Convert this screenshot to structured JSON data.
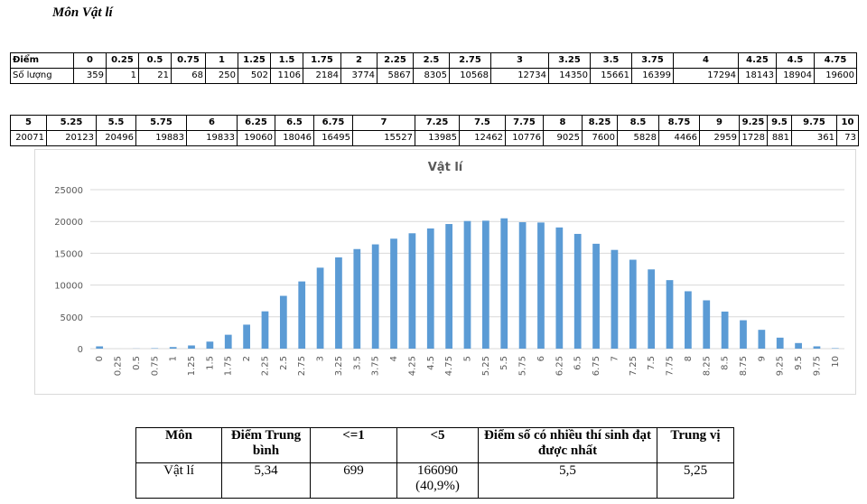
{
  "heading": "Môn Vật lí",
  "score_table": {
    "row1_label": "Điểm",
    "row2_label": "Số lượng",
    "part1": {
      "scores": [
        "0",
        "0.25",
        "0.5",
        "0.75",
        "1",
        "1.25",
        "1.5",
        "1.75",
        "2",
        "2.25",
        "2.5",
        "2.75",
        "3",
        "3.25",
        "3.5",
        "3.75",
        "4",
        "4.25",
        "4.5",
        "4.75"
      ],
      "counts": [
        "359",
        "1",
        "21",
        "68",
        "250",
        "502",
        "1106",
        "2184",
        "3774",
        "5867",
        "8305",
        "10568",
        "12734",
        "14350",
        "15661",
        "16399",
        "17294",
        "18143",
        "18904",
        "19600"
      ]
    },
    "part2": {
      "scores": [
        "5",
        "5.25",
        "5.5",
        "5.75",
        "6",
        "6.25",
        "6.5",
        "6.75",
        "7",
        "7.25",
        "7.5",
        "7.75",
        "8",
        "8.25",
        "8.5",
        "8.75",
        "9",
        "9.25",
        "9.5",
        "9.75",
        "10"
      ],
      "counts": [
        "20071",
        "20123",
        "20496",
        "19883",
        "19833",
        "19060",
        "18046",
        "16495",
        "15527",
        "13985",
        "12462",
        "10776",
        "9025",
        "7600",
        "5828",
        "4466",
        "2959",
        "1728",
        "881",
        "361",
        "73"
      ]
    }
  },
  "chart_data": {
    "type": "bar",
    "title": "Vật lí",
    "xlabel": "",
    "ylabel": "",
    "categories": [
      "0",
      "0.25",
      "0.5",
      "0.75",
      "1",
      "1.25",
      "1.5",
      "1.75",
      "2",
      "2.25",
      "2.5",
      "2.75",
      "3",
      "3.25",
      "3.5",
      "3.75",
      "4",
      "4.25",
      "4.5",
      "4.75",
      "5",
      "5.25",
      "5.5",
      "5.75",
      "6",
      "6.25",
      "6.5",
      "6.75",
      "7",
      "7.25",
      "7.5",
      "7.75",
      "8",
      "8.25",
      "8.5",
      "8.75",
      "9",
      "9.25",
      "9.5",
      "9.75",
      "10"
    ],
    "values": [
      359,
      1,
      21,
      68,
      250,
      502,
      1106,
      2184,
      3774,
      5867,
      8305,
      10568,
      12734,
      14350,
      15661,
      16399,
      17294,
      18143,
      18904,
      19600,
      20071,
      20123,
      20496,
      19883,
      19833,
      19060,
      18046,
      16495,
      15527,
      13985,
      12462,
      10776,
      9025,
      7600,
      5828,
      4466,
      2959,
      1728,
      881,
      361,
      73
    ],
    "ylim": [
      0,
      25000
    ],
    "yticks": [
      "0",
      "5000",
      "10000",
      "15000",
      "20000",
      "25000"
    ],
    "grid": true,
    "bar_color": "#5b9bd5",
    "grid_color": "#d9d9d9",
    "text_color": "#595959"
  },
  "summary": {
    "headers": [
      "Môn",
      "Điểm Trung bình",
      "<=1",
      "<5",
      "Điểm số có nhiều thí sinh đạt được nhất",
      "Trung vị"
    ],
    "row": {
      "subject": "Vật lí",
      "average": "5,34",
      "le1": "699",
      "lt5": "166090 (40,9%)",
      "mode": "5,5",
      "median": "5,25"
    }
  }
}
